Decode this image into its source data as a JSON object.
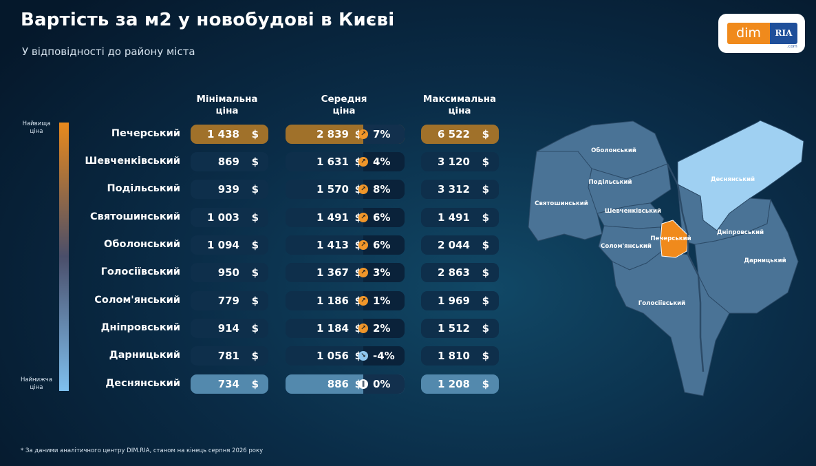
{
  "title": "Вартість за м2 у новобудові в Києві",
  "subtitle": "У відповідності до району міста",
  "logo": {
    "left": "dim",
    "right": "RIA",
    "small": ".com"
  },
  "columns": {
    "min": "Мінімальна\nціна",
    "avg": "Середня\nціна",
    "max": "Максимальна\nціна"
  },
  "legend": {
    "top": "Найвища\nціна",
    "bottom": "Найнижча\nціна"
  },
  "currency": "$",
  "rows": [
    {
      "district": "Печерський",
      "min": "1 438",
      "avg": "2 839",
      "pct": "7%",
      "trend": "up",
      "max": "6 522"
    },
    {
      "district": "Шевченківський",
      "min": "869",
      "avg": "1 631",
      "pct": "4%",
      "trend": "up",
      "max": "3 120"
    },
    {
      "district": "Подільський",
      "min": "939",
      "avg": "1 570",
      "pct": "8%",
      "trend": "up",
      "max": "3 312"
    },
    {
      "district": "Святошинський",
      "min": "1 003",
      "avg": "1 491",
      "pct": "6%",
      "trend": "up",
      "max": "1 491"
    },
    {
      "district": "Оболонський",
      "min": "1 094",
      "avg": "1 413",
      "pct": "6%",
      "trend": "up",
      "max": "2 044"
    },
    {
      "district": "Голосіївський",
      "min": "950",
      "avg": "1 367",
      "pct": "3%",
      "trend": "up",
      "max": "2 863"
    },
    {
      "district": "Солом'янський",
      "min": "779",
      "avg": "1 186",
      "pct": "1%",
      "trend": "up",
      "max": "1 969"
    },
    {
      "district": "Дніпровський",
      "min": "914",
      "avg": "1 184",
      "pct": "2%",
      "trend": "up",
      "max": "1 512"
    },
    {
      "district": "Дарницький",
      "min": "781",
      "avg": "1 056",
      "pct": "-4%",
      "trend": "down",
      "max": "1 810"
    },
    {
      "district": "Деснянський",
      "min": "734",
      "avg": "886",
      "pct": "0%",
      "trend": "flat",
      "max": "1 208"
    }
  ],
  "map_labels": [
    "Оболонський",
    "Подільський",
    "Святошинський",
    "Шевченківський",
    "Деснянський",
    "Печерський",
    "Солом'янський",
    "Дніпровський",
    "Дарницький",
    "Голосіївський"
  ],
  "colors": {
    "highest": "#e98a1d",
    "lowest": "#7fc0ef",
    "map_fill": "#4a7396",
    "map_desna": "#9fd0f2",
    "map_pechersk": "#f08a1c"
  },
  "footnote": "* За даними аналітичного центру DIM.RIA, станом на кінець серпня 2026 року"
}
